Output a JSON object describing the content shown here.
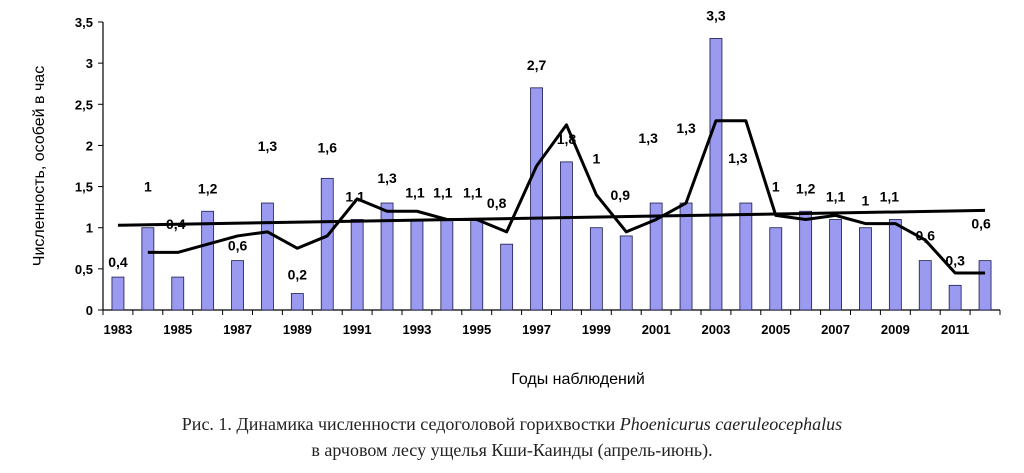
{
  "chart_data": {
    "type": "bar",
    "title": "",
    "xlabel": "Годы наблюдений",
    "ylabel": "Численность, особей в час",
    "ylim": [
      0,
      3.5
    ],
    "yticks": [
      "0",
      "0,5",
      "1",
      "1,5",
      "2",
      "2,5",
      "3",
      "3,5"
    ],
    "ytick_values": [
      0,
      0.5,
      1,
      1.5,
      2,
      2.5,
      3,
      3.5
    ],
    "xtick_labels": [
      "1983",
      "1985",
      "1987",
      "1989",
      "1991",
      "1993",
      "1995",
      "1997",
      "1999",
      "2001",
      "2003",
      "2005",
      "2007",
      "2009",
      "2011"
    ],
    "categories": [
      1983,
      1984,
      1985,
      1986,
      1987,
      1988,
      1989,
      1990,
      1991,
      1992,
      1993,
      1994,
      1995,
      1996,
      1997,
      1998,
      1999,
      2000,
      2001,
      2002,
      2003,
      2004,
      2005,
      2006,
      2007,
      2008,
      2009,
      2010,
      2011,
      2012
    ],
    "values": [
      0.4,
      1.0,
      0.4,
      1.2,
      0.6,
      1.3,
      0.2,
      1.6,
      1.1,
      1.3,
      1.1,
      1.1,
      1.1,
      0.8,
      2.7,
      1.8,
      1.0,
      0.9,
      1.3,
      1.3,
      3.3,
      1.3,
      1.0,
      1.2,
      1.1,
      1.0,
      1.1,
      0.6,
      0.3,
      0.6
    ],
    "value_labels": [
      "0,4",
      "1",
      "0,4",
      "1,2",
      "0,6",
      "1,3",
      "0,2",
      "1,6",
      "1,1",
      "1,3",
      "1,1",
      "1,1",
      "1,1",
      "0,8",
      "2,7",
      "1,8",
      "1",
      "0,9",
      "1,3",
      "1,3",
      "3,3",
      "1,3",
      "1",
      "1,2",
      "1,1",
      "1",
      "1,1",
      "0,6",
      "0,3",
      "0,6"
    ],
    "moving_average": {
      "x": [
        1984,
        1985,
        1986,
        1987,
        1988,
        1989,
        1990,
        1991,
        1992,
        1993,
        1994,
        1995,
        1996,
        1997,
        1998,
        1999,
        2000,
        2001,
        2002,
        2003,
        2004,
        2005,
        2006,
        2007,
        2008,
        2009,
        2010,
        2011,
        2012
      ],
      "y": [
        0.7,
        0.7,
        0.8,
        0.9,
        0.95,
        0.75,
        0.9,
        1.35,
        1.2,
        1.2,
        1.1,
        1.1,
        0.95,
        1.75,
        2.25,
        1.4,
        0.95,
        1.1,
        1.3,
        2.3,
        2.3,
        1.15,
        1.1,
        1.15,
        1.05,
        1.05,
        0.85,
        0.45,
        0.45
      ]
    },
    "trend": {
      "x": [
        1983,
        2012
      ],
      "y": [
        1.03,
        1.21
      ]
    },
    "bar_color": "#9a9af0",
    "line_color": "#000000"
  },
  "caption": {
    "line1_prefix": "Рис. 1. Динамика численности седоголовой горихвостки ",
    "line1_species": "Phoenicurus caeruleocephalus",
    "line2": "в арчовом лесу ущелья Кши-Каинды (апрель-июнь)."
  }
}
